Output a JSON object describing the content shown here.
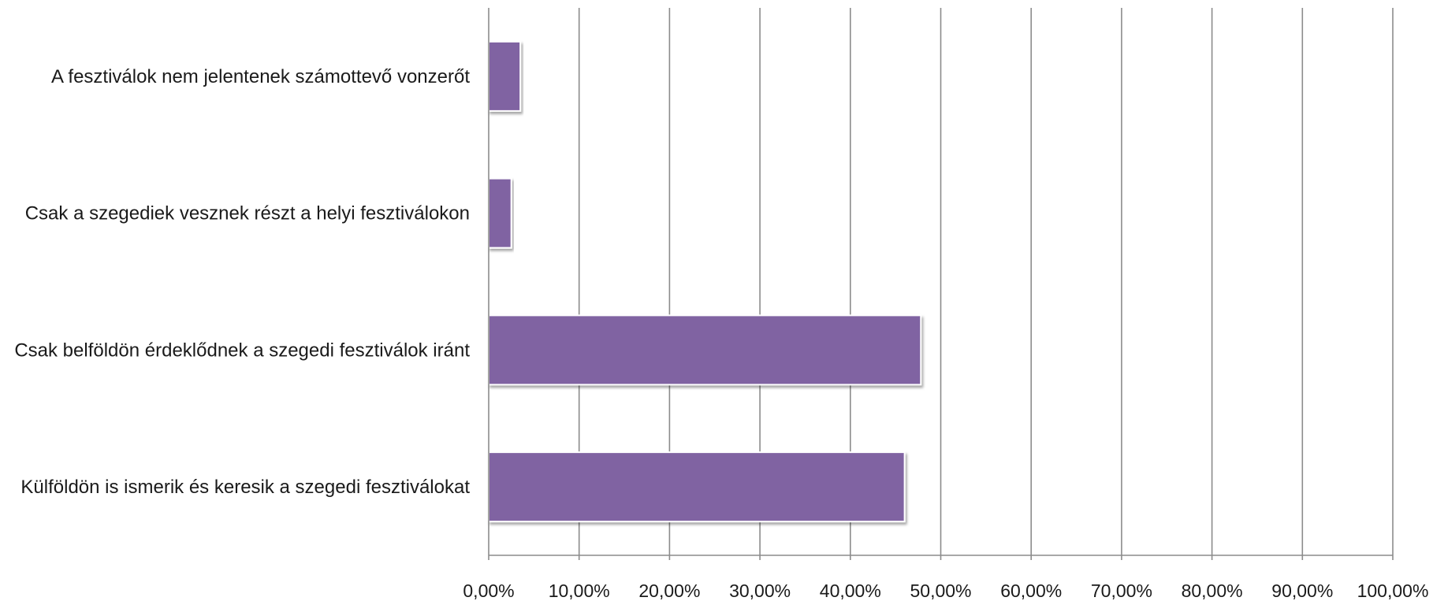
{
  "chart_data": {
    "type": "bar",
    "orientation": "horizontal",
    "title": "",
    "xlabel": "",
    "ylabel": "",
    "xlim": [
      0,
      100
    ],
    "grid": true,
    "legend": "none",
    "bar_color": "#8064a2",
    "x_ticks": [
      "0,00%",
      "10,00%",
      "20,00%",
      "30,00%",
      "40,00%",
      "50,00%",
      "60,00%",
      "70,00%",
      "80,00%",
      "90,00%",
      "100,00%"
    ],
    "categories": [
      "A fesztiválok nem jelentenek számottevő vonzerőt",
      "Csak a szegediek vesznek részt a helyi fesztiválokon",
      "Csak belföldön érdeklődnek a szegedi fesztiválok iránt",
      "Külföldön is ismerik és keresik a szegedi fesztiválokat"
    ],
    "values": [
      3.5,
      2.5,
      47.8,
      46.0
    ]
  }
}
